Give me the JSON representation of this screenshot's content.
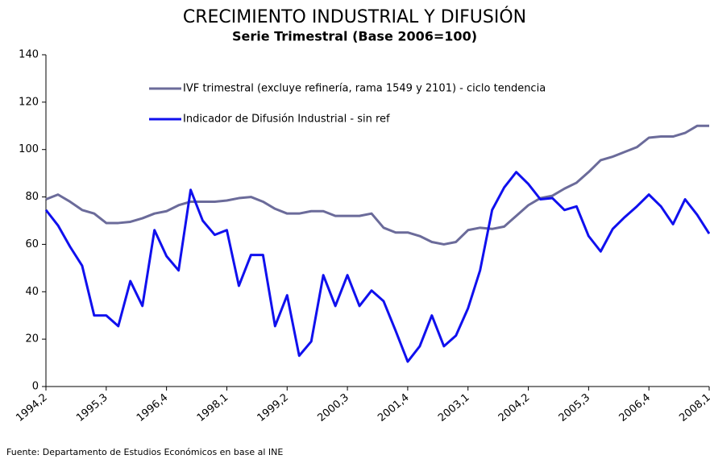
{
  "chart_data": {
    "type": "line",
    "title": "CRECIMIENTO INDUSTRIAL Y DIFUSIÓN",
    "subtitle": "Serie Trimestral (Base 2006=100)",
    "source": "Fuente: Departamento de Estudios Económicos en base al INE",
    "categories": [
      "1994,2",
      null,
      null,
      null,
      null,
      "1995,3",
      null,
      null,
      null,
      null,
      "1996,4",
      null,
      null,
      null,
      null,
      "1998,1",
      null,
      null,
      null,
      null,
      "1999,2",
      null,
      null,
      null,
      null,
      "2000,3",
      null,
      null,
      null,
      null,
      "2001,4",
      null,
      null,
      null,
      null,
      "2003,1",
      null,
      null,
      null,
      null,
      "2004,2",
      null,
      null,
      null,
      null,
      "2005,3",
      null,
      null,
      null,
      null,
      "2006,4",
      null,
      null,
      null,
      null,
      "2008,1"
    ],
    "series": [
      {
        "name": "IVF trimestral (excluye refinería,  rama 1549 y 2101) - ciclo tendencia",
        "color": "#6b6b9a",
        "values": [
          79,
          81,
          78,
          74.5,
          73,
          69,
          69,
          69.5,
          71,
          73,
          74,
          76.5,
          78,
          78,
          78,
          78.5,
          79.5,
          80,
          78,
          75,
          73,
          73,
          74,
          74,
          72,
          72,
          72,
          73,
          67,
          65,
          65,
          63.5,
          61,
          60,
          61,
          66,
          67,
          66.5,
          67.5,
          72,
          76.5,
          79.5,
          80.5,
          83.5,
          86,
          90.5,
          95.5,
          97,
          99,
          101,
          105,
          105.5,
          105.5,
          107,
          110,
          110
        ]
      },
      {
        "name": "Indicador de Difusión Industrial - sin ref",
        "color": "#1010ee",
        "values": [
          74.5,
          68,
          59,
          51,
          30,
          30,
          25.5,
          44.5,
          34,
          66,
          55,
          49,
          83,
          70,
          64,
          66,
          42.5,
          55.5,
          55.5,
          25.5,
          38.5,
          13,
          19,
          47,
          34,
          47,
          34,
          40.5,
          36,
          23.5,
          10.5,
          17,
          30,
          17,
          21.5,
          33,
          49,
          74.5,
          84,
          90.5,
          85.5,
          79,
          79.5,
          74.5,
          76,
          63.5,
          57,
          66.5,
          71.5,
          76,
          81,
          76,
          68.5,
          79,
          72.5,
          64.5
        ]
      }
    ],
    "ylim": [
      0,
      140
    ],
    "yticks": [
      0,
      20,
      40,
      60,
      80,
      100,
      120,
      140
    ]
  }
}
